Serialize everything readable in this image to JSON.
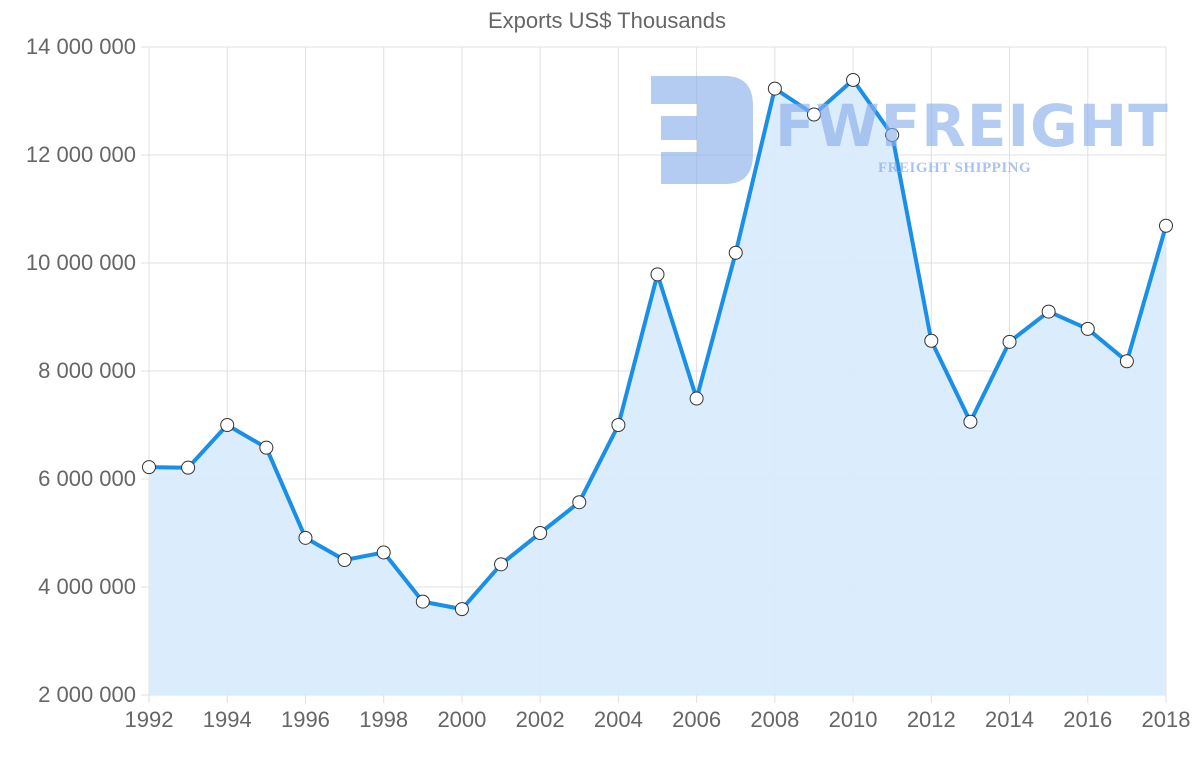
{
  "chart_data": {
    "type": "area",
    "title": "Exports US$ Thousands",
    "xlabel": "",
    "ylabel": "",
    "x": [
      1992,
      1993,
      1994,
      1995,
      1996,
      1997,
      1998,
      1999,
      2000,
      2001,
      2002,
      2003,
      2004,
      2005,
      2006,
      2007,
      2008,
      2009,
      2010,
      2011,
      2012,
      2013,
      2014,
      2015,
      2016,
      2017,
      2018
    ],
    "series": [
      {
        "name": "Exports US$ Thousands",
        "values": [
          6220000,
          6210000,
          7000000,
          6580000,
          4910000,
          4500000,
          4640000,
          3730000,
          3590000,
          4420000,
          5000000,
          5570000,
          7000000,
          9790000,
          7490000,
          10190000,
          13230000,
          12750000,
          13390000,
          12370000,
          8560000,
          7060000,
          8540000,
          9100000,
          8780000,
          8180000,
          10690000
        ]
      }
    ],
    "ylim": [
      2000000,
      14000000
    ],
    "xlim": [
      1992,
      2018
    ],
    "yticks": [
      "14 000 000",
      "12 000 000",
      "10 000 000",
      "8 000 000",
      "6 000 000",
      "4 000 000",
      "2 000 000"
    ],
    "ytick_values": [
      14000000,
      12000000,
      10000000,
      8000000,
      6000000,
      4000000,
      2000000
    ],
    "xticks": [
      "1992",
      "1994",
      "1996",
      "1998",
      "2000",
      "2002",
      "2004",
      "2006",
      "2008",
      "2010",
      "2012",
      "2014",
      "2016",
      "2018"
    ],
    "grid": true,
    "legend": "none",
    "colors": {
      "line": "#1a8fe8",
      "fill": "#d9ebfc",
      "grid": "#e0e0e0",
      "point_fill": "#ffffff",
      "point_stroke": "#333333",
      "text": "#666666"
    }
  },
  "watermark": {
    "brand": "FWFREIGHT",
    "tagline": "FREIGHT SHIPPING"
  }
}
